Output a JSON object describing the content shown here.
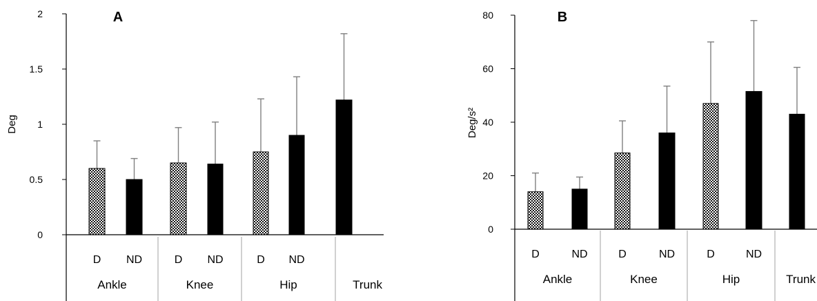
{
  "chart_data": [
    {
      "type": "bar",
      "title": "A",
      "ylabel": "Deg",
      "ylim": [
        0,
        2
      ],
      "yticks": [
        "0",
        "0.5",
        "1",
        "1.5",
        "2"
      ],
      "groups": [
        {
          "name": "Ankle",
          "bars": [
            {
              "label": "D",
              "value": 0.6,
              "error": 0.25,
              "pattern": "hatched"
            },
            {
              "label": "ND",
              "value": 0.5,
              "error": 0.19,
              "pattern": "solid"
            }
          ]
        },
        {
          "name": "Knee",
          "bars": [
            {
              "label": "D",
              "value": 0.65,
              "error": 0.32,
              "pattern": "hatched"
            },
            {
              "label": "ND",
              "value": 0.64,
              "error": 0.38,
              "pattern": "solid"
            }
          ]
        },
        {
          "name": "Hip",
          "bars": [
            {
              "label": "D",
              "value": 0.75,
              "error": 0.48,
              "pattern": "hatched"
            },
            {
              "label": "ND",
              "value": 0.9,
              "error": 0.53,
              "pattern": "solid"
            }
          ]
        },
        {
          "name": "Trunk",
          "bars": [
            {
              "label": "",
              "value": 1.22,
              "error": 0.6,
              "pattern": "solid"
            }
          ]
        }
      ]
    },
    {
      "type": "bar",
      "title": "B",
      "ylabel": "Deg/s²",
      "ylim": [
        0,
        80
      ],
      "yticks": [
        "0",
        "20",
        "40",
        "60",
        "80"
      ],
      "groups": [
        {
          "name": "Ankle",
          "bars": [
            {
              "label": "D",
              "value": 14,
              "error": 7,
              "pattern": "hatched"
            },
            {
              "label": "ND",
              "value": 15,
              "error": 4.5,
              "pattern": "solid"
            }
          ]
        },
        {
          "name": "Knee",
          "bars": [
            {
              "label": "D",
              "value": 28.5,
              "error": 12,
              "pattern": "hatched"
            },
            {
              "label": "ND",
              "value": 36,
              "error": 17.5,
              "pattern": "solid"
            }
          ]
        },
        {
          "name": "Hip",
          "bars": [
            {
              "label": "D",
              "value": 47,
              "error": 23,
              "pattern": "hatched"
            },
            {
              "label": "ND",
              "value": 51.5,
              "error": 26.5,
              "pattern": "solid"
            }
          ]
        },
        {
          "name": "Trunk",
          "bars": [
            {
              "label": "",
              "value": 43,
              "error": 17.5,
              "pattern": "solid"
            }
          ]
        }
      ]
    }
  ],
  "colors": {
    "bar_fill": "#000000",
    "error_bar": "#808080",
    "axis": "#000000",
    "separator": "#a0a0a0"
  }
}
